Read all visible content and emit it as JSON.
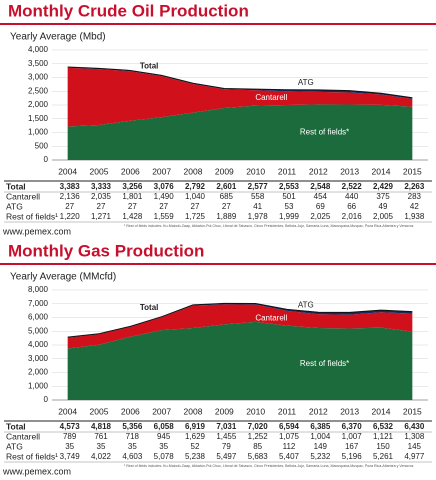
{
  "chart_data": [
    {
      "type": "area",
      "title": "Monthly Crude Oil Production",
      "subtitle": "Yearly Average (Mbd)",
      "categories": [
        "2004",
        "2005",
        "2006",
        "2007",
        "2008",
        "2009",
        "2010",
        "2011",
        "2012",
        "2013",
        "2014",
        "2015"
      ],
      "ylim": [
        0,
        4000
      ],
      "yticks": [
        0,
        {
          "value": 500,
          "label": "500"
        },
        {
          "value": 1000,
          "label": "1,000"
        },
        {
          "value": 1500,
          "label": "1,500"
        },
        {
          "value": 2000,
          "label": "2,000"
        },
        {
          "value": 2500,
          "label": "2,500"
        },
        {
          "value": 3000,
          "label": "3,000"
        },
        {
          "value": 3500,
          "label": "3,500"
        },
        {
          "value": 4000,
          "label": "4,000"
        }
      ],
      "grid": true,
      "series": [
        {
          "name": "Total",
          "color": "#111111",
          "values": [
            3383,
            3333,
            3256,
            3076,
            2792,
            2601,
            2577,
            2553,
            2548,
            2522,
            2429,
            2263
          ],
          "value_labels": [
            "3,383",
            "3,333",
            "3,256",
            "3,076",
            "2,792",
            "2,601",
            "2,577",
            "2,553",
            "2,548",
            "2,522",
            "2,429",
            "2,263"
          ]
        },
        {
          "name": "Cantarell",
          "color": "#d0111b",
          "values": [
            2136,
            2035,
            1801,
            1490,
            1040,
            685,
            558,
            501,
            454,
            440,
            375,
            283
          ],
          "value_labels": [
            "2,136",
            "2,035",
            "1,801",
            "1,490",
            "1,040",
            "685",
            "558",
            "501",
            "454",
            "440",
            "375",
            "283"
          ]
        },
        {
          "name": "ATG",
          "color": "#1b2a5c",
          "values": [
            27,
            27,
            27,
            27,
            27,
            27,
            41,
            53,
            69,
            66,
            49,
            42
          ],
          "value_labels": [
            "27",
            "27",
            "27",
            "27",
            "27",
            "27",
            "41",
            "53",
            "69",
            "66",
            "49",
            "42"
          ]
        },
        {
          "name": "Rest of fields¹",
          "color": "#1c6b3c",
          "values": [
            1220,
            1271,
            1428,
            1559,
            1725,
            1889,
            1978,
            1999,
            2025,
            2016,
            2005,
            1938
          ],
          "value_labels": [
            "1,220",
            "1,271",
            "1,428",
            "1,559",
            "1,725",
            "1,889",
            "1,978",
            "1,999",
            "2,025",
            "2,016",
            "2,005",
            "1,938"
          ]
        }
      ],
      "annotations": [
        "Total",
        "ATG",
        "Cantarell",
        "Rest of fields*"
      ],
      "footnote": "¹ Rest of fields includes: Ku-Maloob-Zaap, Abkatún-Pol-Chuc, Litoral de Tabasco, Cinco Presidentes, Bellota-Jujo, Samaria-Luna, Macuspana-Muspac, Poza Rica-Altamira y Veracruz",
      "source": "www.pemex.com"
    },
    {
      "type": "area",
      "title": "Monthly Gas Production",
      "subtitle": "Yearly Average (MMcfd)",
      "categories": [
        "2004",
        "2005",
        "2006",
        "2007",
        "2008",
        "2009",
        "2010",
        "2011",
        "2012",
        "2013",
        "2014",
        "2015"
      ],
      "ylim": [
        0,
        8000
      ],
      "yticks": [
        0,
        {
          "value": 1000,
          "label": "1,000"
        },
        {
          "value": 2000,
          "label": "2,000"
        },
        {
          "value": 3000,
          "label": "3,000"
        },
        {
          "value": 4000,
          "label": "4,000"
        },
        {
          "value": 5000,
          "label": "5,000"
        },
        {
          "value": 6000,
          "label": "6,000"
        },
        {
          "value": 7000,
          "label": "7,000"
        },
        {
          "value": 8000,
          "label": "8,000"
        }
      ],
      "grid": true,
      "series": [
        {
          "name": "Total",
          "color": "#111111",
          "values": [
            4573,
            4818,
            5356,
            6058,
            6919,
            7031,
            7020,
            6594,
            6385,
            6370,
            6532,
            6430
          ],
          "value_labels": [
            "4,573",
            "4,818",
            "5,356",
            "6,058",
            "6,919",
            "7,031",
            "7,020",
            "6,594",
            "6,385",
            "6,370",
            "6,532",
            "6,430"
          ]
        },
        {
          "name": "Cantarell",
          "color": "#d0111b",
          "values": [
            789,
            761,
            718,
            945,
            1629,
            1455,
            1252,
            1075,
            1004,
            1007,
            1121,
            1308
          ],
          "value_labels": [
            "789",
            "761",
            "718",
            "945",
            "1,629",
            "1,455",
            "1,252",
            "1,075",
            "1,004",
            "1,007",
            "1,121",
            "1,308"
          ]
        },
        {
          "name": "ATG",
          "color": "#1b2a5c",
          "values": [
            35,
            35,
            35,
            35,
            52,
            79,
            85,
            112,
            149,
            167,
            150,
            145
          ],
          "value_labels": [
            "35",
            "35",
            "35",
            "35",
            "52",
            "79",
            "85",
            "112",
            "149",
            "167",
            "150",
            "145"
          ]
        },
        {
          "name": "Rest of fields¹",
          "color": "#1c6b3c",
          "values": [
            3749,
            4022,
            4603,
            5078,
            5238,
            5497,
            5683,
            5407,
            5232,
            5196,
            5261,
            4977
          ],
          "value_labels": [
            "3,749",
            "4,022",
            "4,603",
            "5,078",
            "5,238",
            "5,497",
            "5,683",
            "5,407",
            "5,232",
            "5,196",
            "5,261",
            "4,977"
          ]
        }
      ],
      "annotations": [
        "Total",
        "ATG",
        "Cantarell",
        "Rest of fields*"
      ],
      "footnote": "¹ Rest of fields includes: Ku-Maloob-Zaap, Abkatún-Pol-Chuc, Litoral de Tabasco, Cinco Presidentes, Bellota-Jujo, Samaria-Luna, Macuspana-Muspac, Poza Rica-Altamira y Veracruz",
      "source": "www.pemex.com"
    }
  ]
}
